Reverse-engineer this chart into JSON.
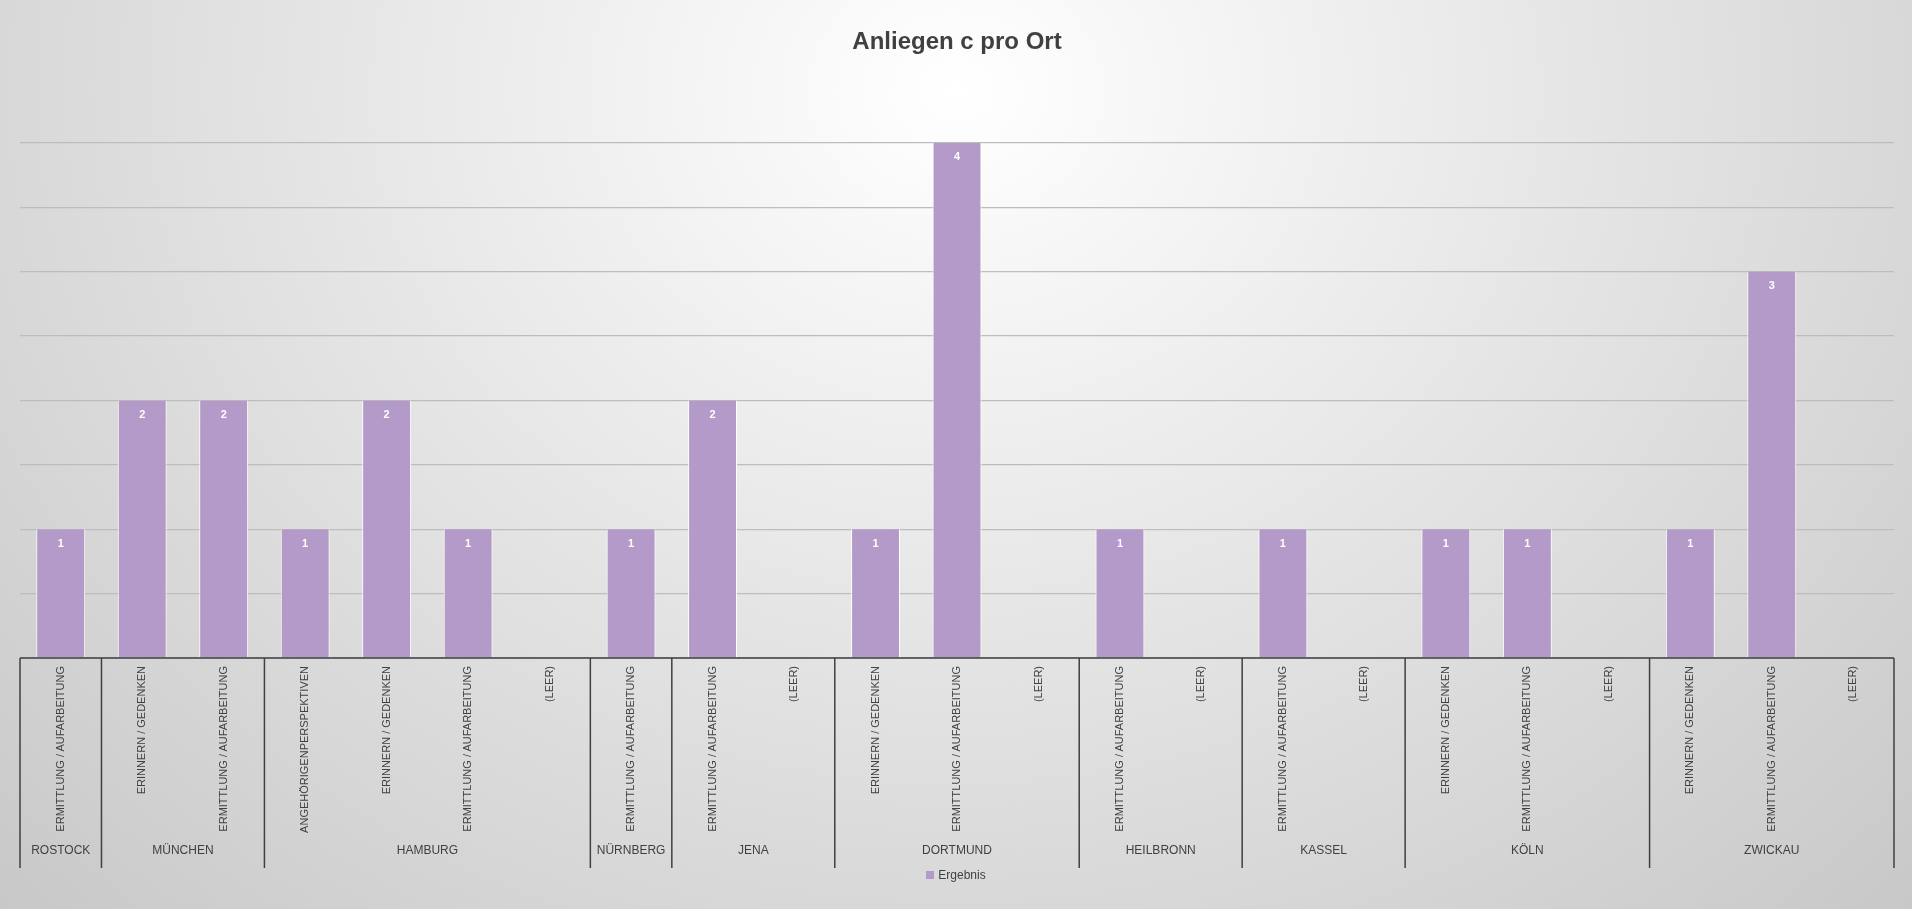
{
  "chart_data": {
    "type": "bar",
    "title": "Anliegen c pro Ort",
    "categories": [
      "ERMITTLUNG / AUFARBEITUNG",
      "ERINNERN / GEDENKEN",
      "ERMITTLUNG / AUFARBEITUNG",
      "ANGEHÖRIGENPERSPEKTIVEN",
      "ERINNERN / GEDENKEN",
      "ERMITTLUNG / AUFARBEITUNG",
      "(LEER)",
      "ERMITTLUNG / AUFARBEITUNG",
      "ERMITTLUNG / AUFARBEITUNG",
      "(LEER)",
      "ERINNERN / GEDENKEN",
      "ERMITTLUNG / AUFARBEITUNG",
      "(LEER)",
      "ERMITTLUNG / AUFARBEITUNG",
      "(LEER)",
      "ERMITTLUNG / AUFARBEITUNG",
      "(LEER)",
      "ERINNERN / GEDENKEN",
      "ERMITTLUNG / AUFARBEITUNG",
      "(LEER)",
      "ERINNERN / GEDENKEN",
      "ERMITTLUNG / AUFARBEITUNG",
      "(LEER)"
    ],
    "series": [
      {
        "name": "Ergebnis",
        "color": "#b39ac8",
        "values": [
          1,
          2,
          2,
          1,
          2,
          1,
          null,
          1,
          2,
          null,
          1,
          4,
          null,
          1,
          null,
          1,
          null,
          1,
          1,
          null,
          1,
          3,
          null
        ]
      }
    ],
    "annotations": [
      "ROSTOCK",
      "MÜNCHEN",
      "HAMBURG",
      "NÜRNBERG",
      "JENA",
      "DORTMUND",
      "HEILBRONN",
      "KASSEL",
      "KÖLN",
      "ZWICKAU"
    ],
    "tick_labels": "x",
    "grid": "y",
    "legend": "bottom",
    "data_labels": true
  }
}
